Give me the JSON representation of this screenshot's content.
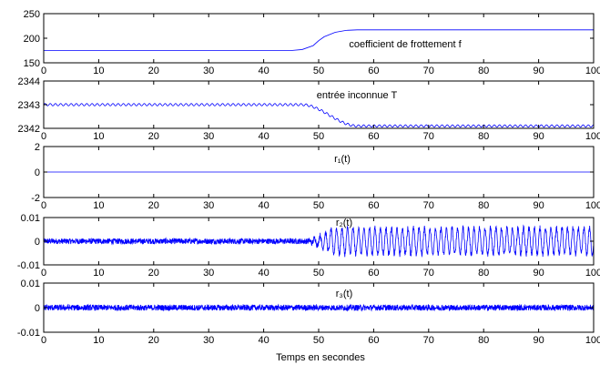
{
  "chart_data": [
    {
      "type": "line",
      "annotation": "coefficient de frottement f",
      "xlim": [
        0,
        100
      ],
      "ylim": [
        150,
        250
      ],
      "xticks": [
        "0",
        "10",
        "20",
        "30",
        "40",
        "50",
        "60",
        "70",
        "80",
        "90",
        "100"
      ],
      "yticks": [
        "150",
        "200",
        "250"
      ],
      "color": "#0000ff",
      "series": [
        {
          "x": [
            0,
            45,
            47,
            49,
            50,
            51,
            53,
            55,
            57,
            60,
            100
          ],
          "y": [
            175,
            175,
            177,
            185,
            195,
            203,
            212,
            216,
            217,
            217,
            217
          ]
        }
      ]
    },
    {
      "type": "line",
      "annotation": "entrée inconnue T",
      "xlim": [
        0,
        100
      ],
      "ylim": [
        2342,
        2344
      ],
      "xticks": [
        "0",
        "10",
        "20",
        "30",
        "40",
        "50",
        "60",
        "70",
        "80",
        "90",
        "100"
      ],
      "yticks": [
        "2342",
        "2343",
        "2344"
      ],
      "color": "#0000ff",
      "baseline_before": 2343.0,
      "baseline_after": 2342.1,
      "transition": [
        47,
        57
      ],
      "oscillation_amplitude": 0.05,
      "oscillation_period": 0.95
    },
    {
      "type": "line",
      "annotation": "r₁(t)",
      "xlim": [
        0,
        100
      ],
      "ylim": [
        -2,
        2
      ],
      "xticks": [
        "0",
        "10",
        "20",
        "30",
        "40",
        "50",
        "60",
        "70",
        "80",
        "90",
        "100"
      ],
      "yticks": [
        "-2",
        "0",
        "2"
      ],
      "color": "#0000ff",
      "series": [
        {
          "x": [
            0,
            100
          ],
          "y": [
            0,
            0
          ]
        }
      ]
    },
    {
      "type": "line",
      "annotation": "r₂(t)",
      "xlim": [
        0,
        100
      ],
      "ylim": [
        -0.01,
        0.01
      ],
      "xticks": [
        "0",
        "10",
        "20",
        "30",
        "40",
        "50",
        "60",
        "70",
        "80",
        "90",
        "100"
      ],
      "yticks": [
        "-0.01",
        "0",
        "0.01"
      ],
      "color": "#0000ff",
      "noise_amplitude": 0.0012,
      "oscillation_start": 48,
      "oscillation_amplitude": 0.0055,
      "oscillation_period": 1.0
    },
    {
      "type": "line",
      "annotation": "r₃(t)",
      "xlim": [
        0,
        100
      ],
      "ylim": [
        -0.01,
        0.01
      ],
      "xticks": [
        "0",
        "10",
        "20",
        "30",
        "40",
        "50",
        "60",
        "70",
        "80",
        "90",
        "100"
      ],
      "yticks": [
        "-0.01",
        "0",
        "0.01"
      ],
      "color": "#0000ff",
      "noise_amplitude": 0.0012
    }
  ],
  "xlabel": "Temps en secondes"
}
